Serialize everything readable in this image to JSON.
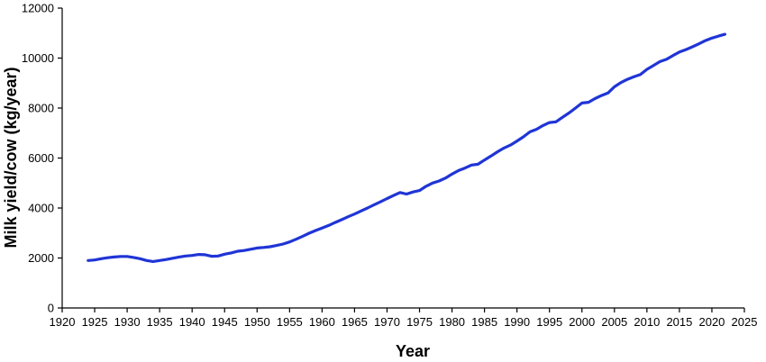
{
  "chart_data": {
    "type": "line",
    "title": "",
    "xlabel": "Year",
    "ylabel": "Milk yield/cow (kg/year)",
    "xlim": [
      1920,
      2025
    ],
    "ylim": [
      0,
      12000
    ],
    "x_ticks": [
      1920,
      1925,
      1930,
      1935,
      1940,
      1945,
      1950,
      1955,
      1960,
      1965,
      1970,
      1975,
      1980,
      1985,
      1990,
      1995,
      2000,
      2005,
      2010,
      2015,
      2020,
      2025
    ],
    "y_ticks": [
      0,
      2000,
      4000,
      6000,
      8000,
      10000,
      12000
    ],
    "grid": false,
    "legend": "none",
    "series": [
      {
        "color": "#1f35d6",
        "points": [
          [
            1924,
            1900
          ],
          [
            1925,
            1920
          ],
          [
            1926,
            1970
          ],
          [
            1927,
            2010
          ],
          [
            1928,
            2040
          ],
          [
            1929,
            2060
          ],
          [
            1930,
            2060
          ],
          [
            1931,
            2020
          ],
          [
            1932,
            1970
          ],
          [
            1933,
            1900
          ],
          [
            1934,
            1860
          ],
          [
            1935,
            1900
          ],
          [
            1936,
            1940
          ],
          [
            1937,
            1990
          ],
          [
            1938,
            2040
          ],
          [
            1939,
            2080
          ],
          [
            1940,
            2100
          ],
          [
            1941,
            2140
          ],
          [
            1942,
            2130
          ],
          [
            1943,
            2070
          ],
          [
            1944,
            2080
          ],
          [
            1945,
            2150
          ],
          [
            1946,
            2200
          ],
          [
            1947,
            2270
          ],
          [
            1948,
            2300
          ],
          [
            1949,
            2350
          ],
          [
            1950,
            2400
          ],
          [
            1951,
            2420
          ],
          [
            1952,
            2450
          ],
          [
            1953,
            2500
          ],
          [
            1954,
            2560
          ],
          [
            1955,
            2640
          ],
          [
            1956,
            2750
          ],
          [
            1957,
            2870
          ],
          [
            1958,
            2990
          ],
          [
            1959,
            3100
          ],
          [
            1960,
            3200
          ],
          [
            1961,
            3300
          ],
          [
            1962,
            3420
          ],
          [
            1963,
            3530
          ],
          [
            1964,
            3650
          ],
          [
            1965,
            3760
          ],
          [
            1966,
            3880
          ],
          [
            1967,
            4000
          ],
          [
            1968,
            4130
          ],
          [
            1969,
            4250
          ],
          [
            1970,
            4380
          ],
          [
            1971,
            4500
          ],
          [
            1972,
            4620
          ],
          [
            1973,
            4560
          ],
          [
            1974,
            4640
          ],
          [
            1975,
            4700
          ],
          [
            1976,
            4870
          ],
          [
            1977,
            5000
          ],
          [
            1978,
            5080
          ],
          [
            1979,
            5200
          ],
          [
            1980,
            5360
          ],
          [
            1981,
            5500
          ],
          [
            1982,
            5600
          ],
          [
            1983,
            5720
          ],
          [
            1984,
            5750
          ],
          [
            1985,
            5920
          ],
          [
            1986,
            6080
          ],
          [
            1987,
            6250
          ],
          [
            1988,
            6400
          ],
          [
            1989,
            6520
          ],
          [
            1990,
            6680
          ],
          [
            1991,
            6850
          ],
          [
            1992,
            7050
          ],
          [
            1993,
            7150
          ],
          [
            1994,
            7300
          ],
          [
            1995,
            7420
          ],
          [
            1996,
            7450
          ],
          [
            1997,
            7630
          ],
          [
            1998,
            7800
          ],
          [
            1999,
            8000
          ],
          [
            2000,
            8200
          ],
          [
            2001,
            8230
          ],
          [
            2002,
            8380
          ],
          [
            2003,
            8500
          ],
          [
            2004,
            8600
          ],
          [
            2005,
            8850
          ],
          [
            2006,
            9020
          ],
          [
            2007,
            9150
          ],
          [
            2008,
            9250
          ],
          [
            2009,
            9340
          ],
          [
            2010,
            9550
          ],
          [
            2011,
            9700
          ],
          [
            2012,
            9860
          ],
          [
            2013,
            9950
          ],
          [
            2014,
            10100
          ],
          [
            2015,
            10240
          ],
          [
            2016,
            10340
          ],
          [
            2017,
            10450
          ],
          [
            2018,
            10570
          ],
          [
            2019,
            10700
          ],
          [
            2020,
            10800
          ],
          [
            2021,
            10880
          ],
          [
            2022,
            10950
          ]
        ]
      }
    ]
  }
}
